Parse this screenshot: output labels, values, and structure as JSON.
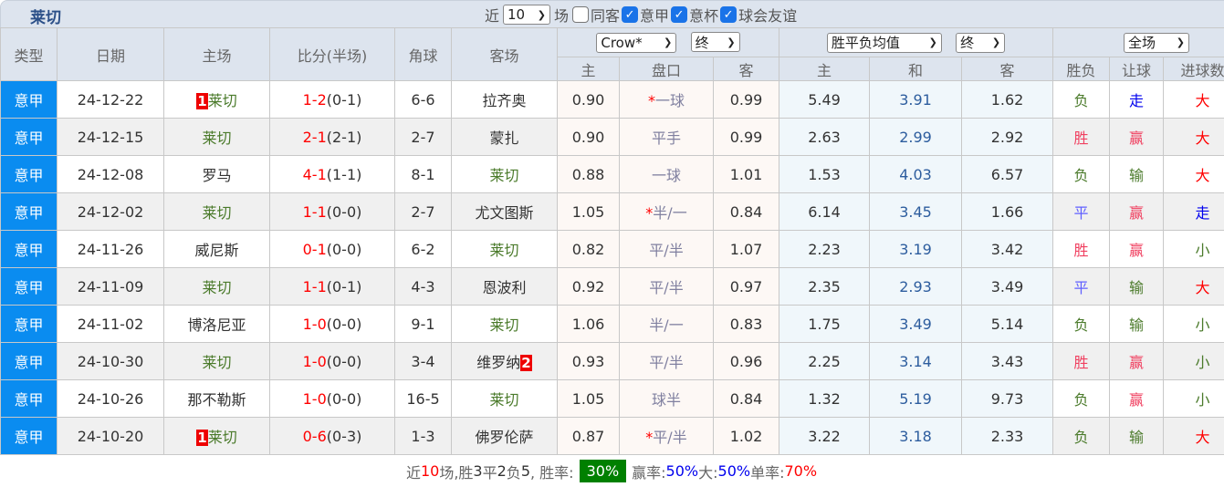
{
  "title": "莱切",
  "filters": {
    "recent_label": "近",
    "recent_value": "10",
    "games_label": "场",
    "options": [
      {
        "label": "同客",
        "checked": false
      },
      {
        "label": "意甲",
        "checked": true
      },
      {
        "label": "意杯",
        "checked": true
      },
      {
        "label": "球会友谊",
        "checked": true
      }
    ]
  },
  "headers": {
    "type": "类型",
    "date": "日期",
    "home": "主场",
    "score": "比分(半场)",
    "corner": "角球",
    "away": "客场",
    "company": "Crow*",
    "company_stage": "终",
    "odds_type": "胜平负均值",
    "odds_stage": "终",
    "scope": "全场",
    "sub": [
      "主",
      "盘口",
      "客",
      "主",
      "和",
      "客",
      "胜负",
      "让球",
      "进球数"
    ]
  },
  "rows": [
    {
      "type": "意甲",
      "date": "24-12-22",
      "home_rank": "1",
      "home": "莱切",
      "score": "1-2",
      "half": "(0-1)",
      "corner": "6-6",
      "away": "拉齐奥",
      "away_rank": "",
      "h": "0.90",
      "star": true,
      "pan": "一球",
      "a": "0.99",
      "w": "5.49",
      "d": "3.91",
      "l": "1.62",
      "r1": "负",
      "r2": "走",
      "r3": "大"
    },
    {
      "type": "意甲",
      "date": "24-12-15",
      "home_rank": "",
      "home": "莱切",
      "score": "2-1",
      "half": "(2-1)",
      "corner": "2-7",
      "away": "蒙扎",
      "away_rank": "",
      "h": "0.90",
      "star": false,
      "pan": "平手",
      "a": "0.99",
      "w": "2.63",
      "d": "2.99",
      "l": "2.92",
      "r1": "胜",
      "r2": "赢",
      "r3": "大"
    },
    {
      "type": "意甲",
      "date": "24-12-08",
      "home_rank": "",
      "home": "罗马",
      "score": "4-1",
      "half": "(1-1)",
      "corner": "8-1",
      "away": "莱切",
      "away_rank": "",
      "h": "0.88",
      "star": false,
      "pan": "一球",
      "a": "1.01",
      "w": "1.53",
      "d": "4.03",
      "l": "6.57",
      "r1": "负",
      "r2": "输",
      "r3": "大"
    },
    {
      "type": "意甲",
      "date": "24-12-02",
      "home_rank": "",
      "home": "莱切",
      "score": "1-1",
      "half": "(0-0)",
      "corner": "2-7",
      "away": "尤文图斯",
      "away_rank": "",
      "h": "1.05",
      "star": true,
      "pan": "半/一",
      "a": "0.84",
      "w": "6.14",
      "d": "3.45",
      "l": "1.66",
      "r1": "平",
      "r2": "赢",
      "r3": "走"
    },
    {
      "type": "意甲",
      "date": "24-11-26",
      "home_rank": "",
      "home": "威尼斯",
      "score": "0-1",
      "half": "(0-0)",
      "corner": "6-2",
      "away": "莱切",
      "away_rank": "",
      "h": "0.82",
      "star": false,
      "pan": "平/半",
      "a": "1.07",
      "w": "2.23",
      "d": "3.19",
      "l": "3.42",
      "r1": "胜",
      "r2": "赢",
      "r3": "小"
    },
    {
      "type": "意甲",
      "date": "24-11-09",
      "home_rank": "",
      "home": "莱切",
      "score": "1-1",
      "half": "(0-1)",
      "corner": "4-3",
      "away": "恩波利",
      "away_rank": "",
      "h": "0.92",
      "star": false,
      "pan": "平/半",
      "a": "0.97",
      "w": "2.35",
      "d": "2.93",
      "l": "3.49",
      "r1": "平",
      "r2": "输",
      "r3": "大"
    },
    {
      "type": "意甲",
      "date": "24-11-02",
      "home_rank": "",
      "home": "博洛尼亚",
      "score": "1-0",
      "half": "(0-0)",
      "corner": "9-1",
      "away": "莱切",
      "away_rank": "",
      "h": "1.06",
      "star": false,
      "pan": "半/一",
      "a": "0.83",
      "w": "1.75",
      "d": "3.49",
      "l": "5.14",
      "r1": "负",
      "r2": "输",
      "r3": "小"
    },
    {
      "type": "意甲",
      "date": "24-10-30",
      "home_rank": "",
      "home": "莱切",
      "score": "1-0",
      "half": "(0-0)",
      "corner": "3-4",
      "away": "维罗纳",
      "away_rank": "2",
      "h": "0.93",
      "star": false,
      "pan": "平/半",
      "a": "0.96",
      "w": "2.25",
      "d": "3.14",
      "l": "3.43",
      "r1": "胜",
      "r2": "赢",
      "r3": "小"
    },
    {
      "type": "意甲",
      "date": "24-10-26",
      "home_rank": "",
      "home": "那不勒斯",
      "score": "1-0",
      "half": "(0-0)",
      "corner": "16-5",
      "away": "莱切",
      "away_rank": "",
      "h": "1.05",
      "star": false,
      "pan": "球半",
      "a": "0.84",
      "w": "1.32",
      "d": "5.19",
      "l": "9.73",
      "r1": "负",
      "r2": "赢",
      "r3": "小"
    },
    {
      "type": "意甲",
      "date": "24-10-20",
      "home_rank": "1",
      "home": "莱切",
      "score": "0-6",
      "half": "(0-3)",
      "corner": "1-3",
      "away": "佛罗伦萨",
      "away_rank": "",
      "h": "0.87",
      "star": true,
      "pan": "平/半",
      "a": "1.02",
      "w": "3.22",
      "d": "3.18",
      "l": "2.33",
      "r1": "负",
      "r2": "输",
      "r3": "大"
    }
  ],
  "summary": {
    "p1": "近",
    "n": "10",
    "p2": "场,胜",
    "win": "3",
    "p3": "平",
    "draw": "2",
    "p4": "负",
    "loss": "5",
    "p5": ", 胜率:",
    "win_rate": "30%",
    "p6": "赢率:",
    "cover_rate": "50%",
    "p7": " 大:",
    "over_rate": "50%",
    "p8": " 单率:",
    "odd_rate": "70%"
  },
  "colors": {
    "type_bg": "#0a8cf0",
    "win_rate_bg": "#008000",
    "header_bg": "#dde4ee"
  }
}
